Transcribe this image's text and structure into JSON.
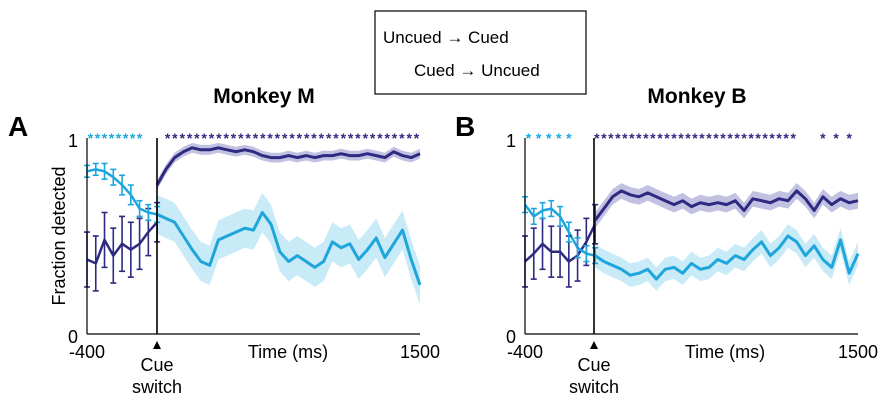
{
  "legend": {
    "items": [
      {
        "label": "Uncued → Cued",
        "color": "#2e2a82"
      },
      {
        "label": "Cued → Uncued",
        "color": "#1ea6dc"
      }
    ]
  },
  "shared": {
    "ylabel": "Fraction detected",
    "xlabel": "Time (ms)",
    "x_tick_labels": [
      "-400",
      "1500"
    ],
    "y_tick_labels": [
      "0",
      "1"
    ],
    "cue_label_line1": "Cue",
    "cue_label_line2": "switch",
    "star_symbol": "*"
  },
  "colors": {
    "dark": "#2e2a82",
    "light": "#1ea6dc",
    "dark_band": "#b8b6dc",
    "light_band": "#bfe6f6"
  },
  "chart_data": [
    {
      "type": "line",
      "panel": "A",
      "title": "Monkey M",
      "xlabel": "Time (ms)",
      "ylabel": "Fraction detected",
      "xlim": [
        -400,
        1500
      ],
      "ylim": [
        0,
        1
      ],
      "cue_switch_x": 0,
      "series": [
        {
          "name": "Uncued → Cued",
          "color": "#2e2a82",
          "pre": {
            "x": [
              -400,
              -350,
              -300,
              -250,
              -200,
              -150,
              -100,
              -50,
              0
            ],
            "y": [
              0.38,
              0.36,
              0.48,
              0.4,
              0.46,
              0.43,
              0.46,
              0.52,
              0.57
            ],
            "err": [
              0.14,
              0.14,
              0.14,
              0.14,
              0.14,
              0.14,
              0.13,
              0.12,
              0.1
            ]
          },
          "post": {
            "x": [
              0,
              50,
              100,
              150,
              200,
              250,
              300,
              350,
              400,
              450,
              500,
              550,
              600,
              650,
              700,
              750,
              800,
              850,
              900,
              950,
              1000,
              1050,
              1100,
              1150,
              1200,
              1250,
              1300,
              1350,
              1400,
              1450,
              1500
            ],
            "y": [
              0.76,
              0.84,
              0.9,
              0.93,
              0.95,
              0.94,
              0.94,
              0.95,
              0.94,
              0.93,
              0.94,
              0.93,
              0.91,
              0.9,
              0.9,
              0.91,
              0.9,
              0.91,
              0.9,
              0.91,
              0.91,
              0.92,
              0.91,
              0.91,
              0.92,
              0.91,
              0.9,
              0.93,
              0.91,
              0.9,
              0.92
            ],
            "band": 0.025
          }
        },
        {
          "name": "Cued → Uncued",
          "color": "#1ea6dc",
          "pre": {
            "x": [
              -400,
              -350,
              -300,
              -250,
              -200,
              -150,
              -100,
              -50,
              0
            ],
            "y": [
              0.83,
              0.84,
              0.83,
              0.8,
              0.76,
              0.71,
              0.64,
              0.62,
              0.61
            ],
            "err": [
              0.03,
              0.03,
              0.04,
              0.04,
              0.05,
              0.05,
              0.04,
              0.04,
              0.04
            ]
          },
          "post": {
            "x": [
              0,
              50,
              100,
              150,
              200,
              250,
              300,
              350,
              400,
              450,
              500,
              550,
              600,
              650,
              700,
              750,
              800,
              850,
              900,
              950,
              1000,
              1050,
              1100,
              1150,
              1200,
              1250,
              1300,
              1350,
              1400,
              1450,
              1500
            ],
            "y": [
              0.61,
              0.59,
              0.57,
              0.5,
              0.43,
              0.37,
              0.35,
              0.48,
              0.5,
              0.52,
              0.54,
              0.53,
              0.62,
              0.56,
              0.42,
              0.37,
              0.4,
              0.37,
              0.34,
              0.37,
              0.47,
              0.44,
              0.46,
              0.38,
              0.43,
              0.49,
              0.39,
              0.46,
              0.53,
              0.38,
              0.25
            ],
            "band": 0.1
          }
        }
      ],
      "significance_stars": [
        {
          "color": "#1ea6dc",
          "x_start": -380,
          "x_end": -100,
          "count": 8
        },
        {
          "color": "#2e2a82",
          "x_start": 60,
          "x_end": 1480,
          "count": 35
        }
      ]
    },
    {
      "type": "line",
      "panel": "B",
      "title": "Monkey B",
      "xlabel": "Time (ms)",
      "ylabel": "",
      "xlim": [
        -400,
        1500
      ],
      "ylim": [
        0,
        1
      ],
      "cue_switch_x": 0,
      "series": [
        {
          "name": "Uncued → Cued",
          "color": "#2e2a82",
          "pre": {
            "x": [
              -400,
              -350,
              -300,
              -250,
              -200,
              -150,
              -100,
              -50,
              0
            ],
            "y": [
              0.37,
              0.41,
              0.46,
              0.42,
              0.42,
              0.37,
              0.4,
              0.47,
              0.56
            ],
            "err": [
              0.13,
              0.13,
              0.13,
              0.13,
              0.13,
              0.13,
              0.13,
              0.12,
              0.1
            ]
          },
          "post": {
            "x": [
              0,
              50,
              100,
              150,
              200,
              250,
              300,
              350,
              400,
              450,
              500,
              550,
              600,
              650,
              700,
              750,
              800,
              850,
              900,
              950,
              1000,
              1050,
              1100,
              1150,
              1200,
              1250,
              1300,
              1350,
              1400,
              1450,
              1500
            ],
            "y": [
              0.58,
              0.64,
              0.7,
              0.73,
              0.71,
              0.7,
              0.72,
              0.7,
              0.68,
              0.66,
              0.68,
              0.65,
              0.67,
              0.66,
              0.67,
              0.66,
              0.68,
              0.63,
              0.69,
              0.68,
              0.67,
              0.69,
              0.68,
              0.73,
              0.69,
              0.63,
              0.7,
              0.66,
              0.69,
              0.67,
              0.68
            ],
            "band": 0.04
          }
        },
        {
          "name": "Cued → Uncued",
          "color": "#1ea6dc",
          "pre": {
            "x": [
              -400,
              -350,
              -300,
              -250,
              -200,
              -150,
              -100,
              -50,
              0
            ],
            "y": [
              0.66,
              0.6,
              0.63,
              0.64,
              0.6,
              0.52,
              0.44,
              0.41,
              0.4
            ],
            "err": [
              0.04,
              0.04,
              0.04,
              0.04,
              0.05,
              0.05,
              0.05,
              0.04,
              0.04
            ]
          },
          "post": {
            "x": [
              0,
              50,
              100,
              150,
              200,
              250,
              300,
              350,
              400,
              450,
              500,
              550,
              600,
              650,
              700,
              750,
              800,
              850,
              900,
              950,
              1000,
              1050,
              1100,
              1150,
              1200,
              1250,
              1300,
              1350,
              1400,
              1450,
              1500
            ],
            "y": [
              0.4,
              0.37,
              0.35,
              0.33,
              0.3,
              0.31,
              0.33,
              0.28,
              0.33,
              0.34,
              0.31,
              0.36,
              0.33,
              0.34,
              0.38,
              0.36,
              0.4,
              0.38,
              0.43,
              0.47,
              0.4,
              0.44,
              0.5,
              0.47,
              0.4,
              0.45,
              0.38,
              0.34,
              0.48,
              0.31,
              0.41
            ],
            "band": 0.06
          }
        }
      ],
      "significance_stars": [
        {
          "color": "#1ea6dc",
          "x_start": -380,
          "x_end": -150,
          "count": 5
        },
        {
          "color": "#2e2a82",
          "x_start": 10,
          "x_end": 1130,
          "count": 29
        },
        {
          "color": "#2e2a82",
          "x_start": 1300,
          "x_end": 1450,
          "count": 3
        }
      ]
    }
  ]
}
